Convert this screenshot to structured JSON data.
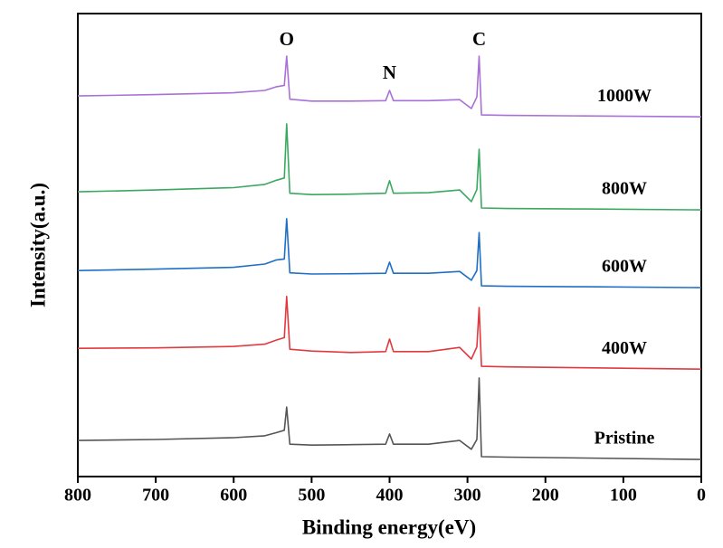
{
  "chart_data": {
    "type": "line",
    "x_label": "Binding energy(eV)",
    "y_label": "Intensity(a.u.)",
    "x": [
      800,
      700,
      600,
      560,
      545,
      535,
      532,
      528,
      500,
      450,
      405,
      400,
      395,
      350,
      310,
      295,
      288,
      285,
      282,
      250,
      150,
      0
    ],
    "series": [
      {
        "name": "Pristine",
        "color": "#555555",
        "values": [
          7.8,
          8.0,
          8.4,
          8.8,
          9.5,
          10,
          15,
          7,
          6.8,
          6.9,
          7.0,
          9.2,
          7.0,
          7.0,
          7.8,
          5.9,
          8,
          21.3,
          4.3,
          4.2,
          4.0,
          3.7
        ]
      },
      {
        "name": "400W",
        "color": "#e03a3f",
        "values": [
          27.7,
          27.8,
          28.1,
          28.6,
          29.5,
          30,
          38.9,
          27.5,
          27.1,
          26.8,
          27,
          29.7,
          27,
          27,
          27.9,
          25.4,
          28,
          36.5,
          23.8,
          23.7,
          23.5,
          23.2
        ]
      },
      {
        "name": "600W",
        "color": "#1f6fc5",
        "values": [
          44.5,
          44.8,
          45.2,
          45.9,
          46.8,
          47,
          55.7,
          44,
          43.75,
          43.8,
          43.9,
          46.3,
          43.9,
          43.9,
          44.3,
          42.4,
          44.5,
          52.7,
          41.2,
          41.1,
          41,
          40.8
        ]
      },
      {
        "name": "800W",
        "color": "#3aa860",
        "values": [
          61.5,
          61.9,
          62.4,
          63.1,
          64,
          64.5,
          76.2,
          61.2,
          60.9,
          61,
          61.2,
          63.9,
          61.2,
          61.3,
          61.9,
          59.4,
          62,
          70.7,
          58,
          57.9,
          57.8,
          57.6
        ]
      },
      {
        "name": "1000W",
        "color": "#a970d8",
        "values": [
          82.2,
          82.5,
          82.9,
          83.4,
          84.2,
          84.5,
          90.8,
          81.5,
          81.1,
          81.1,
          81.2,
          83.4,
          81.2,
          81.2,
          81.4,
          79.5,
          82,
          90.8,
          78.1,
          78,
          77.9,
          77.7
        ]
      }
    ],
    "annotations": [
      {
        "text": "O",
        "x": 532
      },
      {
        "text": "N",
        "x": 400
      },
      {
        "text": "C",
        "x": 285
      }
    ],
    "xlim": [
      800,
      0
    ],
    "xticks": [
      800,
      700,
      600,
      500,
      400,
      300,
      200,
      100,
      0
    ],
    "ylim": [
      0,
      100
    ]
  }
}
